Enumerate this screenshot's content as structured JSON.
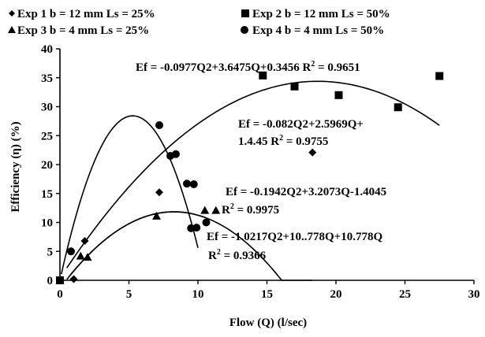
{
  "chart_data": {
    "type": "scatter",
    "xlabel": "Flow (Q) (l/sec)",
    "ylabel": "Efficiency (η) (%)",
    "xlim": [
      0,
      30
    ],
    "ylim": [
      0,
      40
    ],
    "x_ticks": [
      "0",
      "5",
      "10",
      "15",
      "20",
      "25",
      "30"
    ],
    "y_ticks": [
      "0",
      "5",
      "10",
      "15",
      "20",
      "25",
      "30",
      "35",
      "40"
    ],
    "grid": false,
    "legend_position": "top",
    "series": [
      {
        "name": "Exp 1 b = 12 mm Ls = 25%",
        "marker": "diamond",
        "points": [
          [
            0,
            0
          ],
          [
            1.0,
            0.2
          ],
          [
            1.8,
            6.8
          ],
          [
            7.2,
            15.2
          ],
          [
            18.3,
            22.1
          ]
        ],
        "fit": {
          "a": -0.1942,
          "b": 3.2073,
          "c": -1.4045,
          "x_range": [
            0.5,
            18.3
          ]
        }
      },
      {
        "name": "Exp 2 b = 12 mm Ls = 50%",
        "marker": "square",
        "points": [
          [
            0,
            0
          ],
          [
            14.7,
            35.4
          ],
          [
            17.0,
            33.5
          ],
          [
            20.2,
            32.0
          ],
          [
            24.5,
            29.9
          ],
          [
            27.5,
            35.3
          ]
        ],
        "fit": {
          "a": -0.0977,
          "b": 3.6475,
          "c": 0.3456,
          "x_range": [
            0.5,
            27.5
          ]
        }
      },
      {
        "name": "Exp 3 b = 4 mm Ls = 25%",
        "marker": "triangle",
        "points": [
          [
            0,
            0
          ],
          [
            1.5,
            4.2
          ],
          [
            2.0,
            4.0
          ],
          [
            7.0,
            11.1
          ],
          [
            10.5,
            12.1
          ],
          [
            11.3,
            12.1
          ]
        ],
        "fit": {
          "a": -0.1942,
          "b": 3.2073,
          "c": -1.4045,
          "x_range": [
            0.7,
            10.5
          ]
        }
      },
      {
        "name": "Exp 4 b = 4 mm Ls = 50%",
        "marker": "circle",
        "points": [
          [
            0,
            0
          ],
          [
            0.8,
            5.0
          ],
          [
            7.2,
            26.8
          ],
          [
            8.0,
            21.5
          ],
          [
            8.4,
            21.8
          ],
          [
            9.2,
            16.7
          ],
          [
            9.7,
            16.6
          ],
          [
            9.5,
            9.0
          ],
          [
            9.9,
            9.1
          ],
          [
            10.6,
            10.0
          ]
        ],
        "fit": {
          "a": -1.0217,
          "b": 10.778,
          "c": 0,
          "x_range": [
            0.1,
            10.0
          ]
        }
      }
    ],
    "annotations": [
      {
        "text": "Ef = -0.0977Q2+3.6475Q+0.3456 R² = 0.9651",
        "lines": [
          "Ef = -0.0977Q2+3.6475Q+0.3456 R",
          "2",
          " = 0.9651"
        ]
      },
      {
        "text": "Ef = -0.082Q2+2.5969Q+ 1.4.45 R² = 0.9755",
        "lines": [
          "Ef = -0.082Q2+2.5969Q+",
          "1.4.45 R",
          "2",
          " = 0.9755"
        ]
      },
      {
        "text": "Ef = -0.1942Q2+3.2073Q-1.4045 R² = 0.9975",
        "lines": [
          "Ef = -0.1942Q2+3.2073Q-1.4045",
          "R",
          "2",
          " = 0.9975"
        ]
      },
      {
        "text": "Ef = -1.0217Q2+10..778Q+10.778Q R² = 0.9366",
        "lines": [
          "Ef = -1.0217Q2+10..778Q+10.778Q",
          "R",
          "2",
          " = 0.9366"
        ]
      }
    ]
  }
}
